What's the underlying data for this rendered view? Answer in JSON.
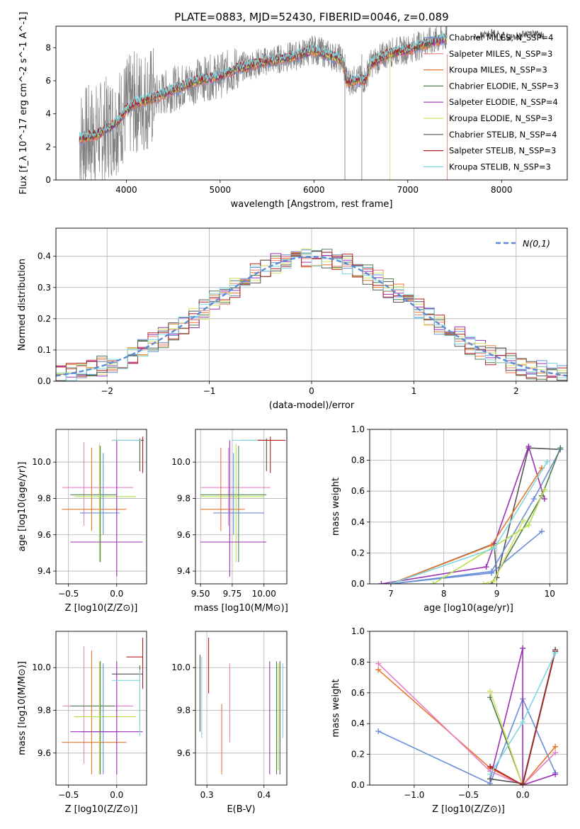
{
  "title": "PLATE=0883, MJD=52430, FIBERID=0046, z=0.089",
  "colors": {
    "Chabrier MILES": "#6a8fd8",
    "Salpeter MILES": "#ee7f76",
    "Kroupa MILES": "#e8772e",
    "Chabrier ELODIE": "#4f7f4f",
    "Salpeter ELODIE": "#9b30b5",
    "Kroupa ELODIE": "#d8e066",
    "Chabrier STELIB": "#555555",
    "Salpeter STELIB": "#b22222",
    "Kroupa STELIB": "#7fd6e0",
    "extra_pink": "#e87fc7",
    "extra_lime": "#b5e04a",
    "data": "#808080",
    "normal": "#5a8cd6"
  },
  "chart_data": [
    {
      "id": "spectrum",
      "type": "line",
      "xlabel": "wavelength [Angstrom, rest frame]",
      "ylabel": "Flux [f_λ 10^-17 erg cm^-2 s^-1 A^-1]",
      "xlim": [
        3250,
        8700
      ],
      "ylim": [
        0,
        9.3
      ],
      "xticks": [
        "4000",
        "5000",
        "6000",
        "7000",
        "8000"
      ],
      "yticks": [
        "0",
        "2",
        "4",
        "6",
        "8"
      ],
      "grid": false,
      "legend_position": "top-right",
      "legend": [
        "Chabrier MILES, N_SSP=4",
        "Salpeter MILES, N_SSP=3",
        "Kroupa MILES, N_SSP=3",
        "Chabrier ELODIE, N_SSP=3",
        "Salpeter ELODIE, N_SSP=4",
        "Kroupa ELODIE, N_SSP=3",
        "Chabrier STELIB, N_SSP=4",
        "Salpeter STELIB, N_SSP=3",
        "Kroupa STELIB, N_SSP=3"
      ],
      "model_continuum": {
        "x": [
          3500,
          3700,
          3900,
          4000,
          4100,
          4300,
          4500,
          4800,
          5000,
          5200,
          5500,
          5800,
          6000,
          6300,
          6350,
          6550,
          6600,
          6800,
          7000,
          7200,
          7400
        ],
        "y": [
          2.5,
          2.8,
          3.5,
          4.3,
          4.7,
          5.0,
          5.5,
          6.1,
          6.3,
          6.8,
          7.2,
          7.5,
          7.9,
          7.3,
          6.0,
          6.1,
          7.0,
          7.7,
          7.9,
          8.3,
          8.6
        ]
      },
      "model_red_end": {
        "x": [
          7700,
          7900,
          8100,
          8300,
          8450
        ],
        "y": [
          8.6,
          8.9,
          8.6,
          8.9,
          8.7
        ]
      }
    },
    {
      "id": "residuals",
      "type": "bar",
      "xlabel": "(data-model)/error",
      "ylabel": "Normed distribution",
      "xlim": [
        -2.5,
        2.5
      ],
      "ylim": [
        0,
        0.49
      ],
      "xticks": [
        "−2",
        "−1",
        "0",
        "1",
        "2"
      ],
      "yticks": [
        "0.0",
        "0.1",
        "0.2",
        "0.3",
        "0.4"
      ],
      "grid": true,
      "legend_position": "top-right",
      "legend": [
        "N(0,1)"
      ],
      "bin_width": 0.1,
      "bin_start": -2.5
    },
    {
      "id": "age-vs-z",
      "type": "scatter",
      "xlabel": "Z [log10(Z/Z⊙)]",
      "ylabel": "age [log10(age/yr)]",
      "xlim": [
        -0.63,
        0.31
      ],
      "ylim": [
        9.33,
        10.18
      ],
      "xticks": [
        "−0.5",
        "0.0"
      ],
      "yticks": [
        "9.4",
        "9.6",
        "9.8",
        "10.0"
      ],
      "grid": true
    },
    {
      "id": "age-vs-mass",
      "type": "scatter",
      "xlabel": "mass [log10(M/M⊙)]",
      "ylabel": "",
      "xlim": [
        9.46,
        10.18
      ],
      "ylim": [
        9.33,
        10.18
      ],
      "xticks": [
        "9.50",
        "9.75",
        "10.00"
      ],
      "yticks": [
        "9.4",
        "9.6",
        "9.8",
        "10.0"
      ],
      "grid": true
    },
    {
      "id": "weight-vs-age",
      "type": "line",
      "xlabel": "age [log10(age/yr)]",
      "ylabel": "mass weight",
      "xlim": [
        6.6,
        10.33
      ],
      "ylim": [
        0,
        1
      ],
      "xticks": [
        "7",
        "8",
        "9",
        "10"
      ],
      "yticks": [
        "0.0",
        "0.2",
        "0.4",
        "0.6",
        "0.8",
        "1.0"
      ],
      "grid": true,
      "series": [
        {
          "x": [
            7.0,
            8.95,
            9.0,
            9.6,
            10.2
          ],
          "y": [
            0.0,
            0.26,
            0.04,
            0.88,
            0.87
          ]
        },
        {
          "x": [
            7.0,
            8.9,
            9.7,
            10.2
          ],
          "y": [
            0.0,
            0.08,
            0.55,
            0.87
          ]
        },
        {
          "x": [
            7.0,
            8.9,
            9.85
          ],
          "y": [
            0.0,
            0.07,
            0.34
          ]
        },
        {
          "x": [
            6.82,
            8.8,
            9.6,
            9.9
          ],
          "y": [
            0.0,
            0.11,
            0.89,
            0.55
          ]
        },
        {
          "x": [
            8.9,
            9.85,
            10.2
          ],
          "y": [
            0.0,
            0.57,
            0.88
          ]
        },
        {
          "x": [
            8.75,
            8.95,
            9.5
          ],
          "y": [
            0.0,
            0.02,
            0.41
          ]
        },
        {
          "x": [
            7.0,
            8.9,
            9.85
          ],
          "y": [
            0.0,
            0.25,
            0.75
          ]
        },
        {
          "x": [
            7.8,
            9.6,
            9.9
          ],
          "y": [
            0.0,
            0.38,
            0.61
          ]
        },
        {
          "x": [
            7.0,
            8.95,
            9.95
          ],
          "y": [
            0.0,
            0.23,
            0.79
          ]
        }
      ]
    },
    {
      "id": "mass-vs-z",
      "type": "scatter",
      "xlabel": "Z [log10(Z/Z⊙)]",
      "ylabel": "mass [log10(M/M⊙)]",
      "xlim": [
        -0.63,
        0.31
      ],
      "ylim": [
        9.45,
        10.17
      ],
      "xticks": [
        "−0.5",
        "0.0"
      ],
      "yticks": [
        "9.6",
        "9.8",
        "10.0"
      ],
      "grid": true
    },
    {
      "id": "mass-vs-ebv",
      "type": "scatter",
      "xlabel": "E(B-V)",
      "ylabel": "",
      "xlim": [
        0.28,
        0.44
      ],
      "ylim": [
        9.45,
        10.17
      ],
      "xticks": [
        "0.3",
        "0.4"
      ],
      "yticks": [
        "9.6",
        "9.8",
        "10.0"
      ],
      "grid": true
    },
    {
      "id": "weight-vs-z",
      "type": "line",
      "xlabel": "Z [log10(Z/Z⊙)]",
      "ylabel": "mass weight",
      "xlim": [
        -1.41,
        0.41
      ],
      "ylim": [
        0,
        1
      ],
      "xticks": [
        "−1.0",
        "−0.5",
        "0.0"
      ],
      "yticks": [
        "0.0",
        "0.2",
        "0.4",
        "0.6",
        "0.8",
        "1.0"
      ],
      "grid": true,
      "series": [
        {
          "x": [
            -1.33,
            -0.3,
            0.0,
            0.3
          ],
          "y": [
            0.35,
            0.01,
            0.56,
            0.08
          ]
        },
        {
          "x": [
            -1.33,
            -0.3,
            0.0,
            0.3
          ],
          "y": [
            0.75,
            0.11,
            0.0,
            0.25
          ]
        },
        {
          "x": [
            -1.33,
            -0.3,
            0.0,
            0.3
          ],
          "y": [
            0.79,
            0.09,
            0.0,
            0.21
          ]
        },
        {
          "x": [
            -0.3,
            0.0,
            0.3
          ],
          "y": [
            0.57,
            0.0,
            0.87
          ]
        },
        {
          "x": [
            -0.3,
            0.0,
            0.0,
            0.3
          ],
          "y": [
            0.04,
            0.89,
            0.0,
            0.07
          ]
        },
        {
          "x": [
            -0.3,
            0.0,
            0.3
          ],
          "y": [
            0.61,
            0.0,
            0.87
          ]
        },
        {
          "x": [
            -0.3,
            0.0,
            0.3
          ],
          "y": [
            0.04,
            0.01,
            0.88
          ]
        },
        {
          "x": [
            -0.3,
            0.0,
            0.3
          ],
          "y": [
            0.12,
            0.0,
            0.87
          ]
        },
        {
          "x": [
            -0.3,
            0.0,
            0.3
          ],
          "y": [
            0.07,
            0.41,
            0.86
          ]
        }
      ]
    }
  ]
}
